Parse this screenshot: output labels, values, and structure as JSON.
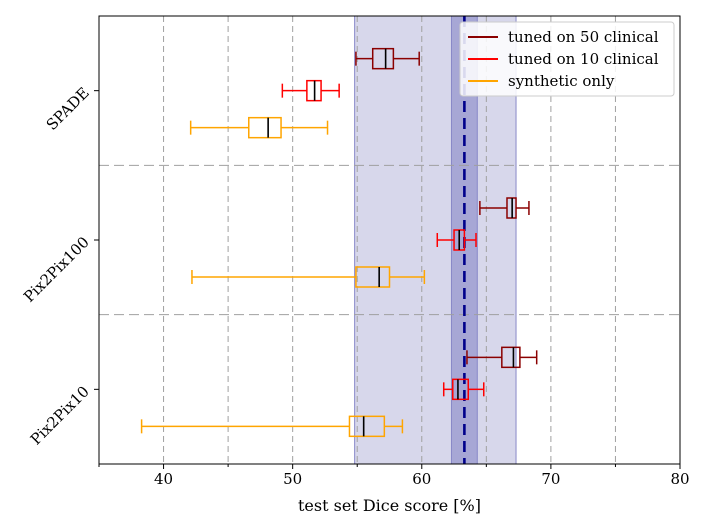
{
  "chart_data": {
    "type": "boxplot",
    "orientation": "horizontal",
    "xlabel": "test set Dice score [%]",
    "xlim": [
      35,
      80
    ],
    "xticks": [
      40,
      50,
      60,
      70,
      80
    ],
    "grid": true,
    "legend_position": "top-right",
    "groups": [
      "SPADE",
      "Pix2Pix100",
      "Pix2Pix10"
    ],
    "series": [
      {
        "name": "tuned on 50 clinical",
        "color": "#8b0000"
      },
      {
        "name": "tuned on 10 clinical",
        "color": "#ff0000"
      },
      {
        "name": "synthetic only",
        "color": "#ffa500"
      }
    ],
    "boxes": [
      {
        "group": "SPADE",
        "series": "tuned on 50 clinical",
        "whisker_low": 54.9,
        "q1": 56.2,
        "median": 57.2,
        "q3": 57.8,
        "whisker_high": 59.8
      },
      {
        "group": "SPADE",
        "series": "tuned on 10 clinical",
        "whisker_low": 49.2,
        "q1": 51.1,
        "median": 51.7,
        "q3": 52.2,
        "whisker_high": 53.6
      },
      {
        "group": "SPADE",
        "series": "synthetic only",
        "whisker_low": 42.1,
        "q1": 46.6,
        "median": 48.1,
        "q3": 49.1,
        "whisker_high": 52.7
      },
      {
        "group": "Pix2Pix100",
        "series": "tuned on 50 clinical",
        "whisker_low": 64.5,
        "q1": 66.6,
        "median": 67.0,
        "q3": 67.3,
        "whisker_high": 68.3
      },
      {
        "group": "Pix2Pix100",
        "series": "tuned on 10 clinical",
        "whisker_low": 61.2,
        "q1": 62.5,
        "median": 62.9,
        "q3": 63.3,
        "whisker_high": 64.2
      },
      {
        "group": "Pix2Pix100",
        "series": "synthetic only",
        "whisker_low": 42.2,
        "q1": 54.9,
        "median": 56.7,
        "q3": 57.5,
        "whisker_high": 60.2
      },
      {
        "group": "Pix2Pix10",
        "series": "tuned on 50 clinical",
        "whisker_low": 63.5,
        "q1": 66.2,
        "median": 67.1,
        "q3": 67.6,
        "whisker_high": 68.9
      },
      {
        "group": "Pix2Pix10",
        "series": "tuned on 10 clinical",
        "whisker_low": 61.7,
        "q1": 62.4,
        "median": 62.8,
        "q3": 63.6,
        "whisker_high": 64.8
      },
      {
        "group": "Pix2Pix10",
        "series": "synthetic only",
        "whisker_low": 38.3,
        "q1": 54.4,
        "median": 55.5,
        "q3": 57.1,
        "whisker_high": 58.5
      }
    ],
    "reference_line": {
      "value": 63.3,
      "color": "#00008b",
      "style": "dashed"
    },
    "reference_bands": [
      {
        "low": 54.8,
        "high": 67.3,
        "color": "#b0b0d8"
      },
      {
        "low": 62.3,
        "high": 64.3,
        "color": "#7878c0"
      }
    ]
  }
}
